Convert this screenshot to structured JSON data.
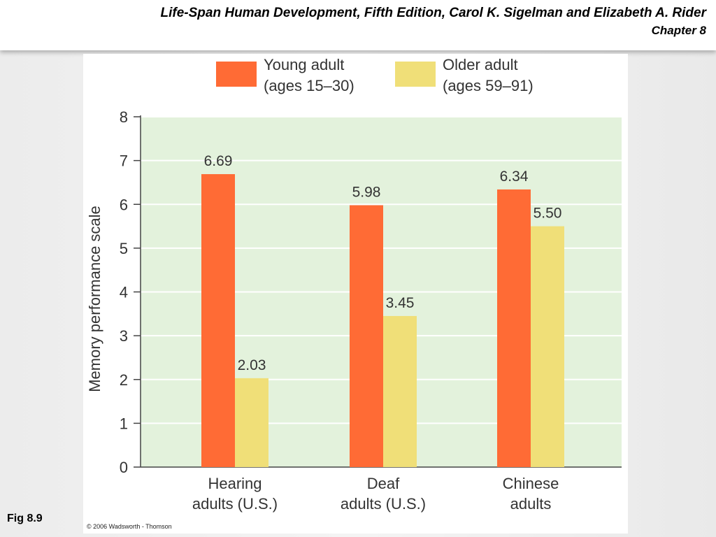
{
  "header": {
    "title": "Life-Span Human Development, Fifth Edition, Carol K. Sigelman and Elizabeth A. Rider",
    "chapter": "Chapter 8"
  },
  "figure": {
    "label": "Fig 8.9",
    "copyright": "© 2006 Wadsworth - Thomson"
  },
  "colors": {
    "young": "#ff6b35",
    "older": "#f0df78",
    "plot_background": "#e3f2dc",
    "gridline": "#ffffff"
  },
  "chart_data": {
    "type": "bar",
    "title": "",
    "xlabel": "",
    "ylabel": "Memory performance scale",
    "ylim": [
      0,
      8
    ],
    "yticks": [
      "0",
      "1",
      "2",
      "3",
      "4",
      "5",
      "6",
      "7",
      "8"
    ],
    "grid": true,
    "legend_position": "top",
    "categories": [
      [
        "Hearing",
        "adults (U.S.)"
      ],
      [
        "Deaf",
        "adults (U.S.)"
      ],
      [
        "Chinese",
        "adults"
      ]
    ],
    "series": [
      {
        "name": "Young adult (ages 15–30)",
        "legend_lines": [
          "Young adult",
          "(ages 15–30)"
        ],
        "values": [
          6.69,
          5.98,
          6.34
        ],
        "labels": [
          "6.69",
          "5.98",
          "6.34"
        ]
      },
      {
        "name": "Older adult (ages 59–91)",
        "legend_lines": [
          "Older adult",
          "(ages 59–91)"
        ],
        "values": [
          2.03,
          3.45,
          5.5
        ],
        "labels": [
          "2.03",
          "3.45",
          "5.50"
        ]
      }
    ]
  }
}
